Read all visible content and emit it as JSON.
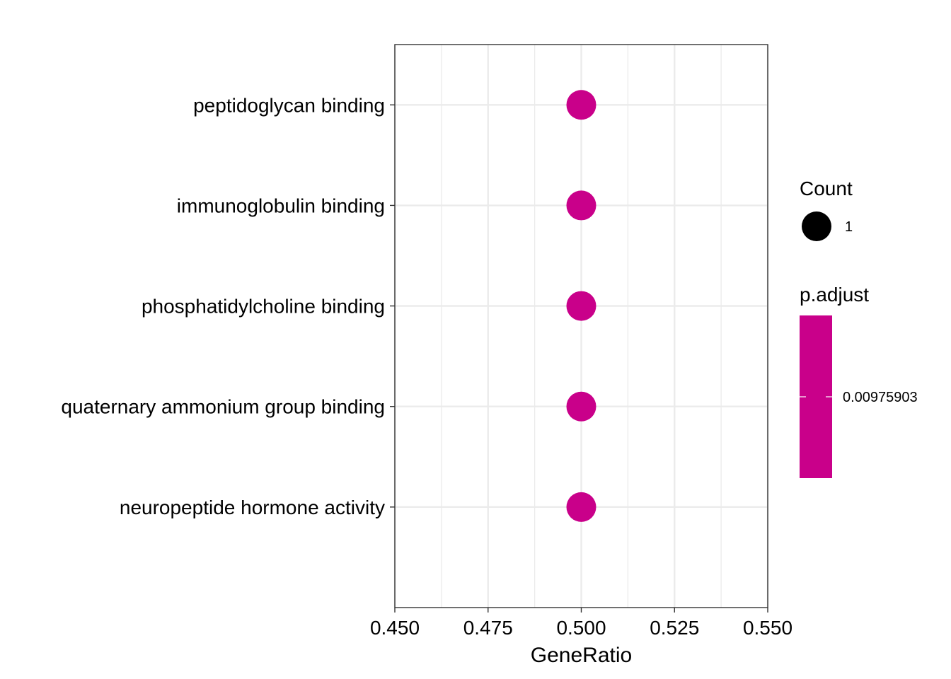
{
  "chart_data": {
    "type": "scatter",
    "xlabel": "GeneRatio",
    "ylabel": "",
    "xlim": [
      0.45,
      0.55
    ],
    "xticks": [
      "0.450",
      "0.475",
      "0.500",
      "0.525",
      "0.550"
    ],
    "xtick_values": [
      0.45,
      0.475,
      0.5,
      0.525,
      0.55
    ],
    "grid": true,
    "categories": [
      "peptidoglycan binding",
      "immunoglobulin binding",
      "phosphatidylcholine binding",
      "quaternary ammonium group binding",
      "neuropeptide hormone activity"
    ],
    "points": [
      {
        "term": "peptidoglycan binding",
        "gene_ratio": 0.5,
        "count": 1,
        "p_adjust": 0.00975903
      },
      {
        "term": "immunoglobulin binding",
        "gene_ratio": 0.5,
        "count": 1,
        "p_adjust": 0.00975903
      },
      {
        "term": "phosphatidylcholine binding",
        "gene_ratio": 0.5,
        "count": 1,
        "p_adjust": 0.00975903
      },
      {
        "term": "quaternary ammonium group binding",
        "gene_ratio": 0.5,
        "count": 1,
        "p_adjust": 0.00975903
      },
      {
        "term": "neuropeptide hormone activity",
        "gene_ratio": 0.5,
        "count": 1,
        "p_adjust": 0.00975903
      }
    ],
    "point_color": "#C9008A",
    "legend": {
      "placement": "right",
      "count": {
        "title": "Count",
        "entries": [
          {
            "label": "1",
            "value": 1
          }
        ],
        "color": "#000000"
      },
      "p_adjust": {
        "title": "p.adjust",
        "tick_label": "0.00975903",
        "color": "#C9008A"
      }
    }
  }
}
